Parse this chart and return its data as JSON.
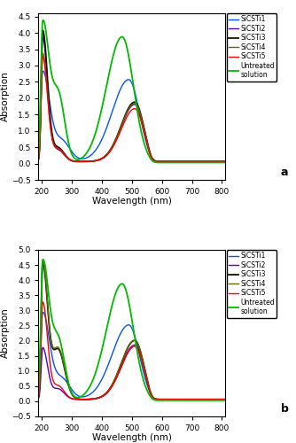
{
  "xlim": [
    190,
    810
  ],
  "ylim_a": [
    -0.5,
    4.6
  ],
  "ylim_b": [
    -0.5,
    5.0
  ],
  "yticks_a": [
    -0.5,
    0.0,
    0.5,
    1.0,
    1.5,
    2.0,
    2.5,
    3.0,
    3.5,
    4.0,
    4.5
  ],
  "yticks_b": [
    -0.5,
    0.0,
    0.5,
    1.0,
    1.5,
    2.0,
    2.5,
    3.0,
    3.5,
    4.0,
    4.5,
    5.0
  ],
  "xticks": [
    200,
    300,
    400,
    500,
    600,
    700,
    800
  ],
  "xlabel_a": "Wavelength (nm)",
  "xlabel_b": "Wavelength (nm)",
  "ylabel": "Absorption",
  "legend_labels": [
    "SiCSTi1",
    "SiCSTi2",
    "SiCSTi3",
    "SiCSTi4",
    "SiCSTi5",
    "Untreated\nsolution"
  ],
  "colors": [
    "#0055FF",
    "#5500BB",
    "#111100",
    "#666600",
    "#FF0000",
    "#00BB00"
  ],
  "label_a": "a",
  "label_b": "b"
}
